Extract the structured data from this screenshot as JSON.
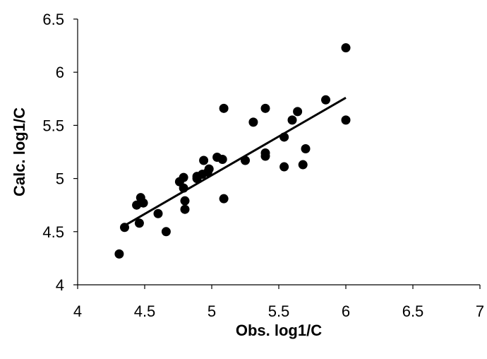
{
  "chart_data": {
    "type": "scatter",
    "title": "",
    "xlabel": "Obs. log1/C",
    "ylabel": "Calc. log1/C",
    "xlim": [
      4,
      7
    ],
    "ylim": [
      4,
      6.5
    ],
    "x_ticks": [
      "4",
      "4.5",
      "5",
      "5.5",
      "6",
      "6.5",
      "7"
    ],
    "y_ticks": [
      "4",
      "4.5",
      "5",
      "5.5",
      "6",
      "6.5"
    ],
    "x_tick_values": [
      4,
      4.5,
      5,
      5.5,
      6,
      6.5,
      7
    ],
    "y_tick_values": [
      4,
      4.5,
      5,
      5.5,
      6,
      6.5
    ],
    "grid": false,
    "legend": "none",
    "marker_color": "#000000",
    "trendline": {
      "x": [
        4.34,
        6.0
      ],
      "y": [
        4.55,
        5.76
      ]
    },
    "points": [
      [
        4.31,
        4.29
      ],
      [
        4.35,
        4.54
      ],
      [
        4.44,
        4.75
      ],
      [
        4.46,
        4.58
      ],
      [
        4.47,
        4.82
      ],
      [
        4.49,
        4.77
      ],
      [
        4.6,
        4.67
      ],
      [
        4.66,
        4.5
      ],
      [
        4.76,
        4.97
      ],
      [
        4.79,
        5.01
      ],
      [
        4.79,
        4.91
      ],
      [
        4.8,
        4.79
      ],
      [
        4.8,
        4.71
      ],
      [
        4.89,
        5.02
      ],
      [
        4.89,
        5.0
      ],
      [
        4.93,
        5.04
      ],
      [
        4.94,
        5.17
      ],
      [
        4.97,
        5.06
      ],
      [
        4.98,
        5.09
      ],
      [
        5.04,
        5.2
      ],
      [
        5.08,
        5.18
      ],
      [
        5.09,
        5.66
      ],
      [
        5.09,
        4.81
      ],
      [
        5.25,
        5.17
      ],
      [
        5.31,
        5.53
      ],
      [
        5.4,
        5.66
      ],
      [
        5.4,
        5.24
      ],
      [
        5.4,
        5.21
      ],
      [
        5.54,
        5.39
      ],
      [
        5.54,
        5.11
      ],
      [
        5.6,
        5.55
      ],
      [
        5.64,
        5.63
      ],
      [
        5.68,
        5.13
      ],
      [
        5.7,
        5.28
      ],
      [
        5.85,
        5.74
      ],
      [
        6.0,
        6.23
      ],
      [
        6.0,
        5.55
      ]
    ]
  }
}
